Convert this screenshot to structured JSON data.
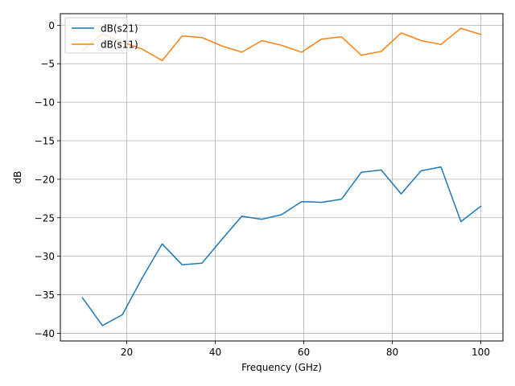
{
  "chart_data": {
    "type": "line",
    "title": "",
    "xlabel": "Frequency (GHz)",
    "ylabel": "dB",
    "xlim": [
      5,
      105
    ],
    "ylim": [
      -41,
      1.5
    ],
    "xticks": [
      20,
      40,
      60,
      80,
      100
    ],
    "yticks": [
      0,
      -5,
      -10,
      -15,
      -20,
      -25,
      -30,
      -35,
      -40
    ],
    "xtick_labels": [
      "20",
      "40",
      "60",
      "80",
      "100"
    ],
    "ytick_labels": [
      "0",
      "−5",
      "−10",
      "−15",
      "−20",
      "−25",
      "−30",
      "−35",
      "−40"
    ],
    "grid": true,
    "legend_placement": "upper left",
    "x": [
      10.0,
      14.5,
      19.0,
      23.5,
      28.0,
      32.5,
      37.0,
      41.5,
      46.0,
      50.5,
      55.0,
      59.5,
      64.0,
      68.5,
      73.0,
      77.5,
      82.0,
      86.5,
      91.0,
      95.5,
      100.0
    ],
    "series": [
      {
        "name": "dB(s21)",
        "color": "#1f77b4",
        "values": [
          -35.4,
          -39.0,
          -37.6,
          -32.8,
          -28.4,
          -31.1,
          -30.9,
          -27.8,
          -24.8,
          -25.2,
          -24.6,
          -22.9,
          -23.0,
          -22.6,
          -19.1,
          -18.8,
          -21.9,
          -18.9,
          -18.4,
          -25.5,
          -23.5
        ]
      },
      {
        "name": "dB(s11)",
        "color": "#ff7f0e",
        "values": [
          -3.3,
          -1.1,
          -2.2,
          -3.1,
          -4.6,
          -1.4,
          -1.6,
          -2.7,
          -3.5,
          -2.0,
          -2.6,
          -3.5,
          -1.8,
          -1.5,
          -3.9,
          -3.4,
          -1.0,
          -2.0,
          -2.5,
          -0.4,
          -1.2
        ]
      }
    ]
  }
}
